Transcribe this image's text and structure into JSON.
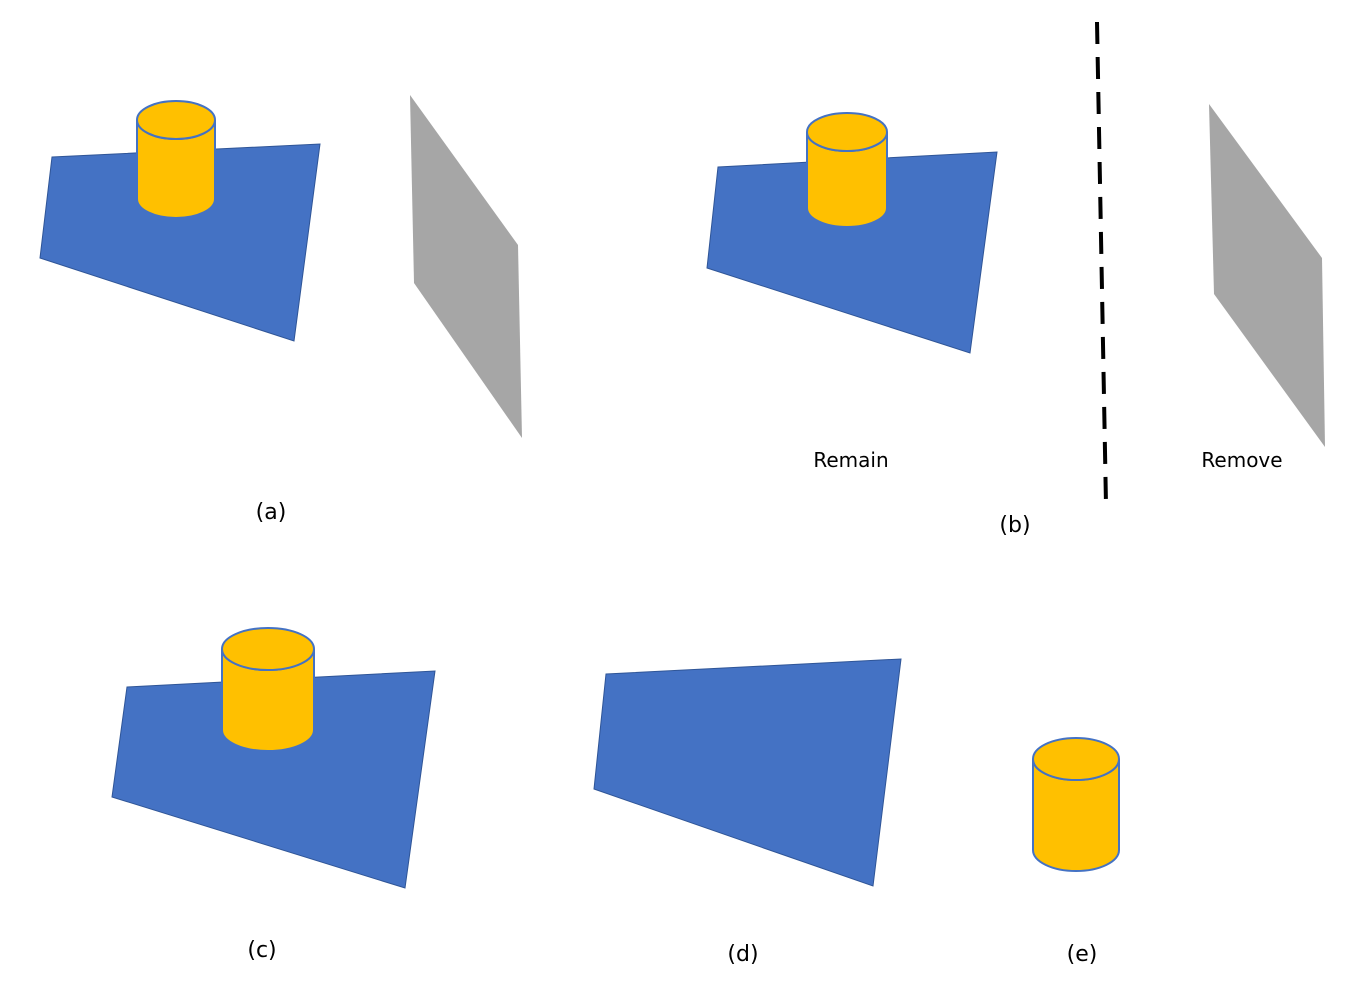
{
  "colors": {
    "plane": "#4472C4",
    "plane_stroke": "#2F5597",
    "cylinder": "#FFC000",
    "cylinder_stroke": "#4472C4",
    "removed_plane": "#A6A6A6",
    "divider": "#000000"
  },
  "panels": {
    "a": {
      "label": "(a)"
    },
    "b": {
      "label": "(b)",
      "remain_label": "Remain",
      "remove_label": "Remove"
    },
    "c": {
      "label": "(c)"
    },
    "d": {
      "label": "(d)"
    },
    "e": {
      "label": "(e)"
    }
  }
}
